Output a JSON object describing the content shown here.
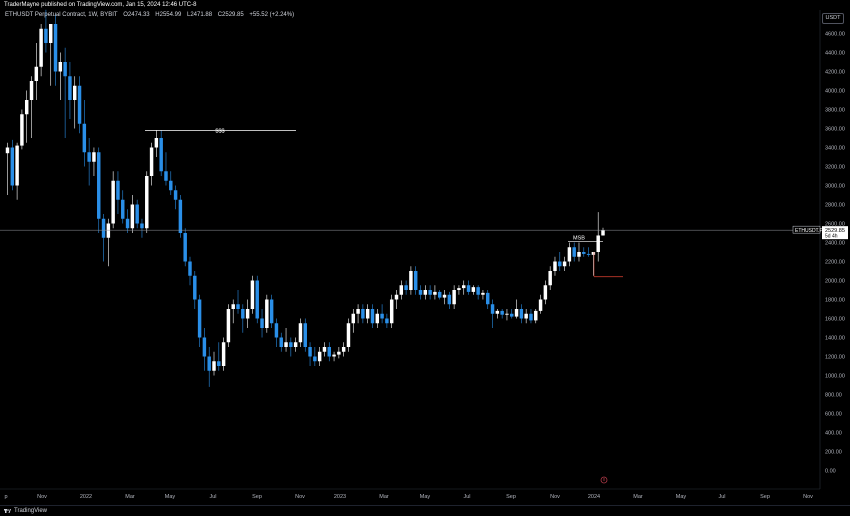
{
  "header": {
    "published": "TraderMayne published on TradingView.com, Jan 15, 2024 12:46 UTC-8"
  },
  "legend": {
    "symbol": "ETHUSDT Perpetual Contract, 1W, BYBIT",
    "open": "O2474.33",
    "high": "H2554.99",
    "low": "L2471.88",
    "close": "C2529.85",
    "change": "+55.52 (+2.24%)"
  },
  "currency": "USDT",
  "footer": {
    "brand": "TradingView"
  },
  "colors": {
    "up": "#ffffff",
    "down": "#2a8fe8",
    "level": "#ffffff",
    "stop": "#c0392b"
  },
  "annotations": {
    "liquidity": "$$$",
    "msb": "MSB"
  },
  "price_label": {
    "symbol": "ETHUSDT.P",
    "price": "2529.85",
    "countdown": "5d 4h"
  },
  "chart_data": {
    "type": "candlestick",
    "x_ticks": [
      "p",
      "Nov",
      "2022",
      "Mar",
      "May",
      "Jul",
      "Sep",
      "Nov",
      "2023",
      "Mar",
      "May",
      "Jul",
      "Sep",
      "Nov",
      "2024",
      "Mar",
      "May",
      "Jul",
      "Sep",
      "Nov"
    ],
    "y_ticks": [
      4600,
      4400,
      4200,
      4000,
      3800,
      3600,
      3400,
      3200,
      3000,
      2800,
      2600,
      2400,
      2200,
      2000,
      1800,
      1600,
      1400,
      1200,
      1000,
      800,
      600,
      400,
      200,
      0
    ],
    "ylim": [
      -100,
      4800
    ],
    "series": [
      {
        "o": 3340,
        "h": 3450,
        "l": 2900,
        "c": 3400
      },
      {
        "o": 3400,
        "h": 3480,
        "l": 2950,
        "c": 3000
      },
      {
        "o": 3000,
        "h": 3450,
        "l": 2850,
        "c": 3420
      },
      {
        "o": 3420,
        "h": 3800,
        "l": 3380,
        "c": 3750
      },
      {
        "o": 3750,
        "h": 4000,
        "l": 3450,
        "c": 3900
      },
      {
        "o": 3900,
        "h": 4150,
        "l": 3500,
        "c": 4100
      },
      {
        "o": 4100,
        "h": 4500,
        "l": 3900,
        "c": 4250
      },
      {
        "o": 4250,
        "h": 4700,
        "l": 4150,
        "c": 4650
      },
      {
        "o": 4650,
        "h": 4850,
        "l": 4400,
        "c": 4500
      },
      {
        "o": 4500,
        "h": 4700,
        "l": 4050,
        "c": 4700
      },
      {
        "o": 4700,
        "h": 4800,
        "l": 4050,
        "c": 4200
      },
      {
        "o": 4200,
        "h": 4400,
        "l": 3900,
        "c": 4300
      },
      {
        "o": 4300,
        "h": 4450,
        "l": 3500,
        "c": 4150
      },
      {
        "o": 4150,
        "h": 4300,
        "l": 3700,
        "c": 3900
      },
      {
        "o": 3900,
        "h": 4150,
        "l": 3600,
        "c": 4050
      },
      {
        "o": 4050,
        "h": 4150,
        "l": 3550,
        "c": 3650
      },
      {
        "o": 3650,
        "h": 3900,
        "l": 3200,
        "c": 3350
      },
      {
        "o": 3350,
        "h": 3500,
        "l": 3000,
        "c": 3250
      },
      {
        "o": 3250,
        "h": 3400,
        "l": 3100,
        "c": 3350
      },
      {
        "o": 3350,
        "h": 3400,
        "l": 2500,
        "c": 2650
      },
      {
        "o": 2650,
        "h": 2700,
        "l": 2200,
        "c": 2450
      },
      {
        "o": 2450,
        "h": 2650,
        "l": 2150,
        "c": 2600
      },
      {
        "o": 2600,
        "h": 3150,
        "l": 2550,
        "c": 3050
      },
      {
        "o": 3050,
        "h": 3150,
        "l": 2700,
        "c": 2850
      },
      {
        "o": 2850,
        "h": 2950,
        "l": 2600,
        "c": 2650
      },
      {
        "o": 2650,
        "h": 2750,
        "l": 2500,
        "c": 2550
      },
      {
        "o": 2550,
        "h": 2900,
        "l": 2500,
        "c": 2800
      },
      {
        "o": 2800,
        "h": 2850,
        "l": 2550,
        "c": 2600
      },
      {
        "o": 2600,
        "h": 2650,
        "l": 2450,
        "c": 2550
      },
      {
        "o": 2550,
        "h": 3150,
        "l": 2500,
        "c": 3100
      },
      {
        "o": 3100,
        "h": 3450,
        "l": 3000,
        "c": 3400
      },
      {
        "o": 3400,
        "h": 3580,
        "l": 3300,
        "c": 3500
      },
      {
        "o": 3500,
        "h": 3580,
        "l": 3100,
        "c": 3150
      },
      {
        "o": 3150,
        "h": 3350,
        "l": 3000,
        "c": 3050
      },
      {
        "o": 3050,
        "h": 3150,
        "l": 2900,
        "c": 2950
      },
      {
        "o": 2950,
        "h": 3000,
        "l": 2750,
        "c": 2850
      },
      {
        "o": 2850,
        "h": 2900,
        "l": 2450,
        "c": 2500
      },
      {
        "o": 2500,
        "h": 2550,
        "l": 2150,
        "c": 2200
      },
      {
        "o": 2200,
        "h": 2250,
        "l": 1950,
        "c": 2050
      },
      {
        "o": 2050,
        "h": 2100,
        "l": 1700,
        "c": 1800
      },
      {
        "o": 1800,
        "h": 1850,
        "l": 1300,
        "c": 1400
      },
      {
        "o": 1400,
        "h": 1500,
        "l": 1050,
        "c": 1200
      },
      {
        "o": 1200,
        "h": 1300,
        "l": 880,
        "c": 1050
      },
      {
        "o": 1050,
        "h": 1250,
        "l": 1000,
        "c": 1150
      },
      {
        "o": 1150,
        "h": 1350,
        "l": 1050,
        "c": 1100
      },
      {
        "o": 1100,
        "h": 1400,
        "l": 1050,
        "c": 1350
      },
      {
        "o": 1350,
        "h": 1750,
        "l": 1300,
        "c": 1700
      },
      {
        "o": 1700,
        "h": 1800,
        "l": 1550,
        "c": 1750
      },
      {
        "o": 1750,
        "h": 1900,
        "l": 1650,
        "c": 1700
      },
      {
        "o": 1700,
        "h": 1750,
        "l": 1450,
        "c": 1600
      },
      {
        "o": 1600,
        "h": 1800,
        "l": 1500,
        "c": 1700
      },
      {
        "o": 1700,
        "h": 2050,
        "l": 1650,
        "c": 2000
      },
      {
        "o": 2000,
        "h": 2050,
        "l": 1550,
        "c": 1600
      },
      {
        "o": 1600,
        "h": 1700,
        "l": 1400,
        "c": 1500
      },
      {
        "o": 1500,
        "h": 1850,
        "l": 1450,
        "c": 1800
      },
      {
        "o": 1800,
        "h": 1850,
        "l": 1500,
        "c": 1550
      },
      {
        "o": 1550,
        "h": 1600,
        "l": 1300,
        "c": 1400
      },
      {
        "o": 1400,
        "h": 1450,
        "l": 1250,
        "c": 1300
      },
      {
        "o": 1300,
        "h": 1500,
        "l": 1250,
        "c": 1350
      },
      {
        "o": 1350,
        "h": 1400,
        "l": 1200,
        "c": 1300
      },
      {
        "o": 1300,
        "h": 1400,
        "l": 1250,
        "c": 1350
      },
      {
        "o": 1350,
        "h": 1600,
        "l": 1300,
        "c": 1550
      },
      {
        "o": 1550,
        "h": 1600,
        "l": 1250,
        "c": 1300
      },
      {
        "o": 1300,
        "h": 1350,
        "l": 1100,
        "c": 1200
      },
      {
        "o": 1200,
        "h": 1300,
        "l": 1100,
        "c": 1150
      },
      {
        "o": 1150,
        "h": 1300,
        "l": 1100,
        "c": 1250
      },
      {
        "o": 1250,
        "h": 1350,
        "l": 1200,
        "c": 1300
      },
      {
        "o": 1300,
        "h": 1350,
        "l": 1150,
        "c": 1200
      },
      {
        "o": 1200,
        "h": 1250,
        "l": 1150,
        "c": 1220
      },
      {
        "o": 1220,
        "h": 1300,
        "l": 1180,
        "c": 1250
      },
      {
        "o": 1250,
        "h": 1350,
        "l": 1200,
        "c": 1300
      },
      {
        "o": 1300,
        "h": 1600,
        "l": 1250,
        "c": 1550
      },
      {
        "o": 1550,
        "h": 1700,
        "l": 1450,
        "c": 1650
      },
      {
        "o": 1650,
        "h": 1750,
        "l": 1550,
        "c": 1700
      },
      {
        "o": 1700,
        "h": 1750,
        "l": 1550,
        "c": 1600
      },
      {
        "o": 1600,
        "h": 1750,
        "l": 1550,
        "c": 1700
      },
      {
        "o": 1700,
        "h": 1750,
        "l": 1500,
        "c": 1550
      },
      {
        "o": 1550,
        "h": 1700,
        "l": 1500,
        "c": 1650
      },
      {
        "o": 1650,
        "h": 1750,
        "l": 1550,
        "c": 1600
      },
      {
        "o": 1600,
        "h": 1650,
        "l": 1500,
        "c": 1550
      },
      {
        "o": 1550,
        "h": 1850,
        "l": 1500,
        "c": 1800
      },
      {
        "o": 1800,
        "h": 1900,
        "l": 1700,
        "c": 1850
      },
      {
        "o": 1850,
        "h": 2000,
        "l": 1800,
        "c": 1950
      },
      {
        "o": 1950,
        "h": 2000,
        "l": 1850,
        "c": 1900
      },
      {
        "o": 1900,
        "h": 2150,
        "l": 1850,
        "c": 2100
      },
      {
        "o": 2100,
        "h": 2150,
        "l": 1850,
        "c": 1900
      },
      {
        "o": 1900,
        "h": 1950,
        "l": 1800,
        "c": 1850
      },
      {
        "o": 1850,
        "h": 1950,
        "l": 1800,
        "c": 1900
      },
      {
        "o": 1900,
        "h": 1950,
        "l": 1800,
        "c": 1850
      },
      {
        "o": 1850,
        "h": 1950,
        "l": 1800,
        "c": 1880
      },
      {
        "o": 1880,
        "h": 1900,
        "l": 1800,
        "c": 1820
      },
      {
        "o": 1820,
        "h": 1900,
        "l": 1750,
        "c": 1850
      },
      {
        "o": 1850,
        "h": 1880,
        "l": 1700,
        "c": 1750
      },
      {
        "o": 1750,
        "h": 1950,
        "l": 1700,
        "c": 1900
      },
      {
        "o": 1900,
        "h": 1950,
        "l": 1850,
        "c": 1920
      },
      {
        "o": 1920,
        "h": 2000,
        "l": 1850,
        "c": 1950
      },
      {
        "o": 1950,
        "h": 2000,
        "l": 1850,
        "c": 1880
      },
      {
        "o": 1880,
        "h": 1950,
        "l": 1850,
        "c": 1930
      },
      {
        "o": 1930,
        "h": 1950,
        "l": 1800,
        "c": 1850
      },
      {
        "o": 1850,
        "h": 1900,
        "l": 1800,
        "c": 1870
      },
      {
        "o": 1870,
        "h": 1900,
        "l": 1700,
        "c": 1750
      },
      {
        "o": 1750,
        "h": 1800,
        "l": 1500,
        "c": 1650
      },
      {
        "o": 1650,
        "h": 1700,
        "l": 1600,
        "c": 1680
      },
      {
        "o": 1680,
        "h": 1700,
        "l": 1600,
        "c": 1640
      },
      {
        "o": 1640,
        "h": 1700,
        "l": 1580,
        "c": 1650
      },
      {
        "o": 1650,
        "h": 1700,
        "l": 1600,
        "c": 1620
      },
      {
        "o": 1620,
        "h": 1800,
        "l": 1600,
        "c": 1700
      },
      {
        "o": 1700,
        "h": 1750,
        "l": 1550,
        "c": 1600
      },
      {
        "o": 1600,
        "h": 1700,
        "l": 1550,
        "c": 1650
      },
      {
        "o": 1650,
        "h": 1700,
        "l": 1550,
        "c": 1580
      },
      {
        "o": 1580,
        "h": 1700,
        "l": 1550,
        "c": 1680
      },
      {
        "o": 1680,
        "h": 1850,
        "l": 1650,
        "c": 1800
      },
      {
        "o": 1800,
        "h": 2000,
        "l": 1750,
        "c": 1950
      },
      {
        "o": 1950,
        "h": 2150,
        "l": 1900,
        "c": 2100
      },
      {
        "o": 2100,
        "h": 2250,
        "l": 2050,
        "c": 2200
      },
      {
        "o": 2200,
        "h": 2300,
        "l": 2100,
        "c": 2150
      },
      {
        "o": 2150,
        "h": 2250,
        "l": 2100,
        "c": 2200
      },
      {
        "o": 2200,
        "h": 2400,
        "l": 2150,
        "c": 2350
      },
      {
        "o": 2350,
        "h": 2400,
        "l": 2200,
        "c": 2250
      },
      {
        "o": 2250,
        "h": 2400,
        "l": 2200,
        "c": 2300
      },
      {
        "o": 2300,
        "h": 2350,
        "l": 2250,
        "c": 2280
      },
      {
        "o": 2280,
        "h": 2350,
        "l": 2250,
        "c": 2270
      },
      {
        "o": 2270,
        "h": 2300,
        "l": 2050,
        "c": 2300
      },
      {
        "o": 2300,
        "h": 2720,
        "l": 2200,
        "c": 2474
      },
      {
        "o": 2474,
        "h": 2555,
        "l": 2472,
        "c": 2530
      }
    ],
    "levels": [
      {
        "label": "$$$",
        "price": 3580
      },
      {
        "label": "MSB",
        "price": 2410
      },
      {
        "label": "",
        "price": 2040
      }
    ],
    "last_price": 2529.85
  }
}
